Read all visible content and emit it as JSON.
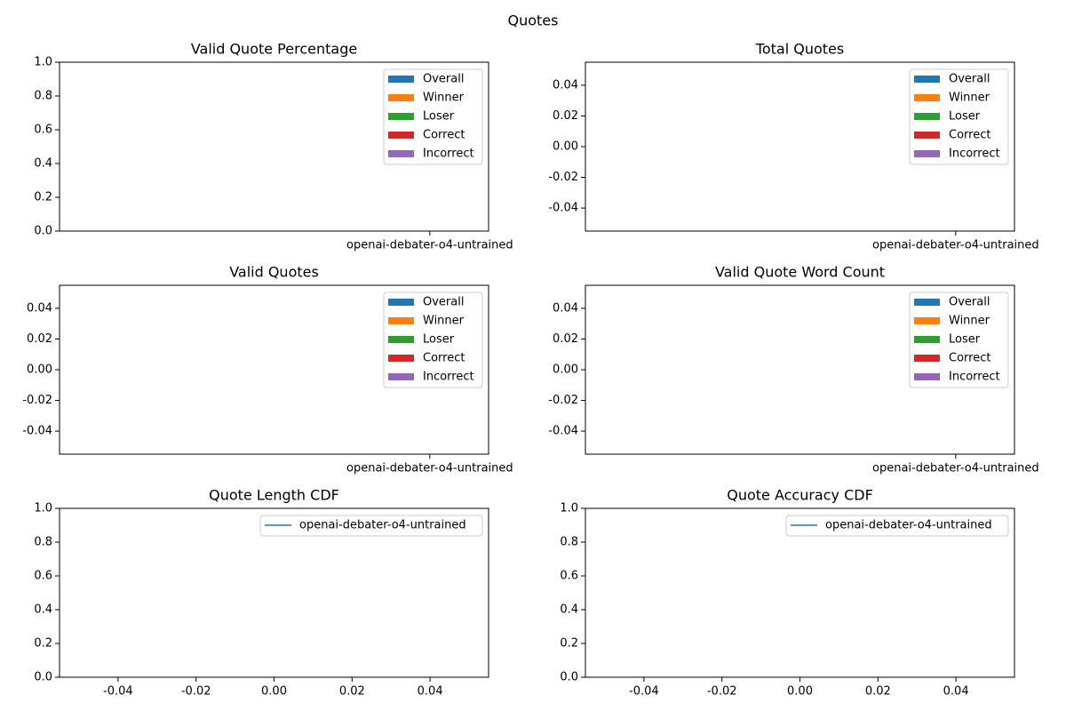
{
  "title": "Quotes",
  "chart_data": [
    {
      "type": "bar",
      "title": "Valid Quote Percentage",
      "categories": [
        "openai-debater-o4-untrained"
      ],
      "series": [
        {
          "name": "Overall",
          "color": "#1f77b4",
          "values": [
            null
          ]
        },
        {
          "name": "Winner",
          "color": "#ff7f0e",
          "values": [
            null
          ]
        },
        {
          "name": "Loser",
          "color": "#2ca02c",
          "values": [
            null
          ]
        },
        {
          "name": "Correct",
          "color": "#d62728",
          "values": [
            null
          ]
        },
        {
          "name": "Incorrect",
          "color": "#9467bd",
          "values": [
            null
          ]
        }
      ],
      "ylim": [
        0,
        1
      ],
      "yticks": [
        {
          "value": 0,
          "label": "0.0"
        },
        0.2,
        0.4,
        0.6,
        0.8,
        {
          "value": 1,
          "label": "1.0"
        }
      ],
      "legend": "upper right"
    },
    {
      "type": "bar",
      "title": "Total Quotes",
      "categories": [
        "openai-debater-o4-untrained"
      ],
      "series": [
        {
          "name": "Overall",
          "color": "#1f77b4",
          "values": [
            null
          ]
        },
        {
          "name": "Winner",
          "color": "#ff7f0e",
          "values": [
            null
          ]
        },
        {
          "name": "Loser",
          "color": "#2ca02c",
          "values": [
            null
          ]
        },
        {
          "name": "Correct",
          "color": "#d62728",
          "values": [
            null
          ]
        },
        {
          "name": "Incorrect",
          "color": "#9467bd",
          "values": [
            null
          ]
        }
      ],
      "ylim": [
        -0.055,
        0.055
      ],
      "yticks": [
        -0.04,
        -0.02,
        {
          "value": 0,
          "label": "0.00"
        },
        0.02,
        0.04
      ],
      "legend": "upper right"
    },
    {
      "type": "bar",
      "title": "Valid Quotes",
      "categories": [
        "openai-debater-o4-untrained"
      ],
      "series": [
        {
          "name": "Overall",
          "color": "#1f77b4",
          "values": [
            null
          ]
        },
        {
          "name": "Winner",
          "color": "#ff7f0e",
          "values": [
            null
          ]
        },
        {
          "name": "Loser",
          "color": "#2ca02c",
          "values": [
            null
          ]
        },
        {
          "name": "Correct",
          "color": "#d62728",
          "values": [
            null
          ]
        },
        {
          "name": "Incorrect",
          "color": "#9467bd",
          "values": [
            null
          ]
        }
      ],
      "ylim": [
        -0.055,
        0.055
      ],
      "yticks": [
        -0.04,
        -0.02,
        {
          "value": 0,
          "label": "0.00"
        },
        0.02,
        0.04
      ],
      "legend": "upper right"
    },
    {
      "type": "bar",
      "title": "Valid Quote Word Count",
      "categories": [
        "openai-debater-o4-untrained"
      ],
      "series": [
        {
          "name": "Overall",
          "color": "#1f77b4",
          "values": [
            null
          ]
        },
        {
          "name": "Winner",
          "color": "#ff7f0e",
          "values": [
            null
          ]
        },
        {
          "name": "Loser",
          "color": "#2ca02c",
          "values": [
            null
          ]
        },
        {
          "name": "Correct",
          "color": "#d62728",
          "values": [
            null
          ]
        },
        {
          "name": "Incorrect",
          "color": "#9467bd",
          "values": [
            null
          ]
        }
      ],
      "ylim": [
        -0.055,
        0.055
      ],
      "yticks": [
        -0.04,
        -0.02,
        {
          "value": 0,
          "label": "0.00"
        },
        0.02,
        0.04
      ],
      "legend": "upper right"
    },
    {
      "type": "line",
      "title": "Quote Length CDF",
      "x": [],
      "series": [
        {
          "name": "openai-debater-o4-untrained",
          "color": "#1f77b4",
          "values": []
        }
      ],
      "xlim": [
        -0.055,
        0.055
      ],
      "xticks": [
        -0.04,
        -0.02,
        {
          "value": 0,
          "label": "0.00"
        },
        0.02,
        0.04
      ],
      "ylim": [
        0,
        1
      ],
      "yticks": [
        {
          "value": 0,
          "label": "0.0"
        },
        0.2,
        0.4,
        0.6,
        0.8,
        {
          "value": 1,
          "label": "1.0"
        }
      ],
      "legend": "upper right"
    },
    {
      "type": "line",
      "title": "Quote Accuracy CDF",
      "x": [],
      "series": [
        {
          "name": "openai-debater-o4-untrained",
          "color": "#1f77b4",
          "values": []
        }
      ],
      "xlim": [
        -0.055,
        0.055
      ],
      "xticks": [
        -0.04,
        -0.02,
        {
          "value": 0,
          "label": "0.00"
        },
        0.02,
        0.04
      ],
      "ylim": [
        0,
        1
      ],
      "yticks": [
        {
          "value": 0,
          "label": "0.0"
        },
        0.2,
        0.4,
        0.6,
        0.8,
        {
          "value": 1,
          "label": "1.0"
        }
      ],
      "legend": "upper right"
    }
  ]
}
